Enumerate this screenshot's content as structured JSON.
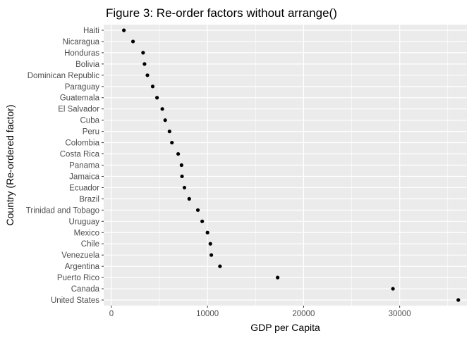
{
  "chart_data": {
    "type": "scatter",
    "title": "Figure 3: Re-order factors without arrange()",
    "xlabel": "GDP per Capita",
    "ylabel": "Country (Re-ordered factor)",
    "xlim": [
      -800,
      37000
    ],
    "xticks": [
      0,
      10000,
      20000,
      30000
    ],
    "xtick_labels": [
      "0",
      "10000",
      "20000",
      "30000"
    ],
    "grid": true,
    "colors": {
      "panel": "#ebebeb",
      "grid": "#ffffff",
      "point": "#000000"
    },
    "points": [
      {
        "country": "Haiti",
        "gdp": 1300
      },
      {
        "country": "Nicaragua",
        "gdp": 2250
      },
      {
        "country": "Honduras",
        "gdp": 3300
      },
      {
        "country": "Bolivia",
        "gdp": 3450
      },
      {
        "country": "Dominican Republic",
        "gdp": 3750
      },
      {
        "country": "Paraguay",
        "gdp": 4300
      },
      {
        "country": "Guatemala",
        "gdp": 4750
      },
      {
        "country": "El Salvador",
        "gdp": 5300
      },
      {
        "country": "Cuba",
        "gdp": 5600
      },
      {
        "country": "Peru",
        "gdp": 6050
      },
      {
        "country": "Colombia",
        "gdp": 6300
      },
      {
        "country": "Costa Rica",
        "gdp": 6950
      },
      {
        "country": "Panama",
        "gdp": 7300
      },
      {
        "country": "Jamaica",
        "gdp": 7350
      },
      {
        "country": "Ecuador",
        "gdp": 7600
      },
      {
        "country": "Brazil",
        "gdp": 8100
      },
      {
        "country": "Trinidad and Tobago",
        "gdp": 9000
      },
      {
        "country": "Uruguay",
        "gdp": 9450
      },
      {
        "country": "Mexico",
        "gdp": 10000
      },
      {
        "country": "Chile",
        "gdp": 10300
      },
      {
        "country": "Venezuela",
        "gdp": 10400
      },
      {
        "country": "Argentina",
        "gdp": 11300
      },
      {
        "country": "Puerto Rico",
        "gdp": 17300
      },
      {
        "country": "Canada",
        "gdp": 29300
      },
      {
        "country": "United States",
        "gdp": 36100
      }
    ]
  }
}
